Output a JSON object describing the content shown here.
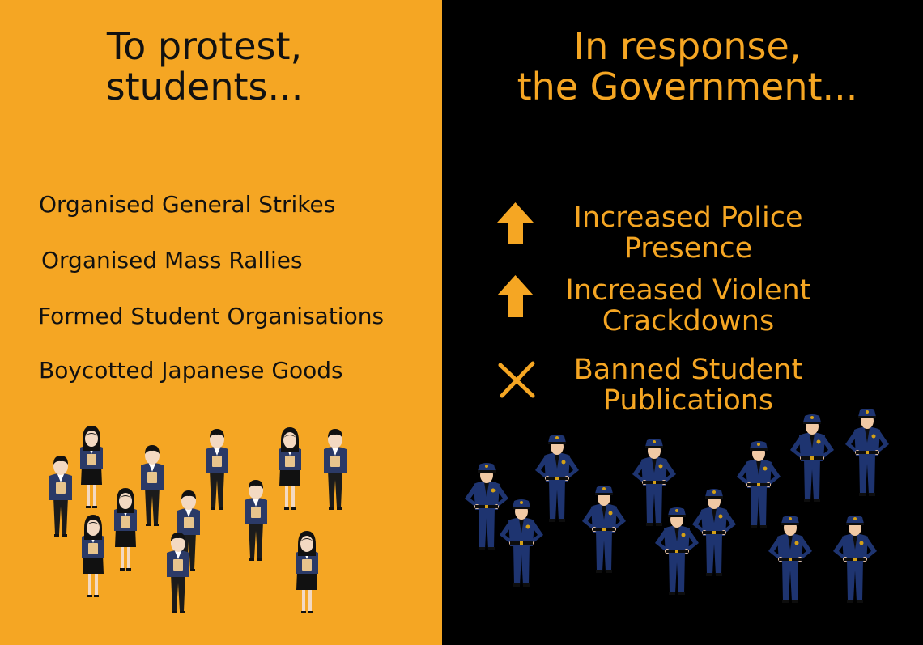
{
  "left_panel": {
    "title": "To protest,\nstudents...",
    "actions": [
      "Organised General Strikes",
      "Organised Mass Rallies",
      "Formed Student Organisations",
      "Boycotted Japanese Goods"
    ],
    "illustration_icon": "student-crowd-illustration"
  },
  "right_panel": {
    "title": "In response,\nthe Government...",
    "responses": [
      {
        "icon": "up-arrow-icon",
        "text": "Increased Police\nPresence"
      },
      {
        "icon": "up-arrow-icon",
        "text": "Increased Violent\nCrackdowns"
      },
      {
        "icon": "cross-icon",
        "text": "Banned Student\nPublications"
      }
    ],
    "illustration_icon": "police-crowd-illustration"
  },
  "colors": {
    "left_background": "#F5A623",
    "right_background": "#000000",
    "accent": "#F5A623",
    "dark_text": "#111111",
    "police_uniform": "#1E3470",
    "student_jacket": "#2B3A67"
  }
}
